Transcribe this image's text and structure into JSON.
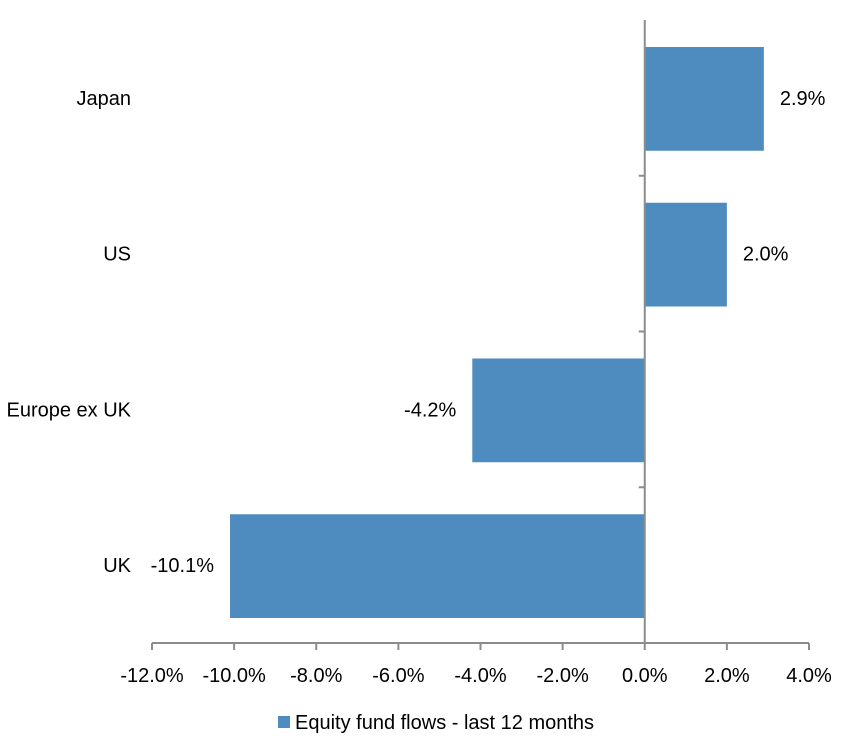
{
  "chart_data": {
    "type": "bar",
    "orientation": "horizontal",
    "categories": [
      "Japan",
      "US",
      "Europe ex UK",
      "UK"
    ],
    "series": [
      {
        "name": "Equity fund flows - last 12 months",
        "values": [
          2.9,
          2.0,
          -4.2,
          -10.1
        ],
        "color": "#4e8bbf"
      }
    ],
    "data_labels": [
      "2.9%",
      "2.0%",
      "-4.2%",
      "-10.1%"
    ],
    "xlim": [
      -12,
      4
    ],
    "x_ticks": [
      -12,
      -10,
      -8,
      -6,
      -4,
      -2,
      0,
      2,
      4
    ],
    "x_tick_labels": [
      "-12.0%",
      "-10.0%",
      "-8.0%",
      "-6.0%",
      "-4.0%",
      "-2.0%",
      "0.0%",
      "2.0%",
      "4.0%"
    ],
    "xlabel": "",
    "ylabel": "",
    "grid": false,
    "legend": {
      "placement": "bottom",
      "entries": [
        "Equity fund flows - last 12 months"
      ]
    },
    "axis_color": "#8c8c8c"
  }
}
